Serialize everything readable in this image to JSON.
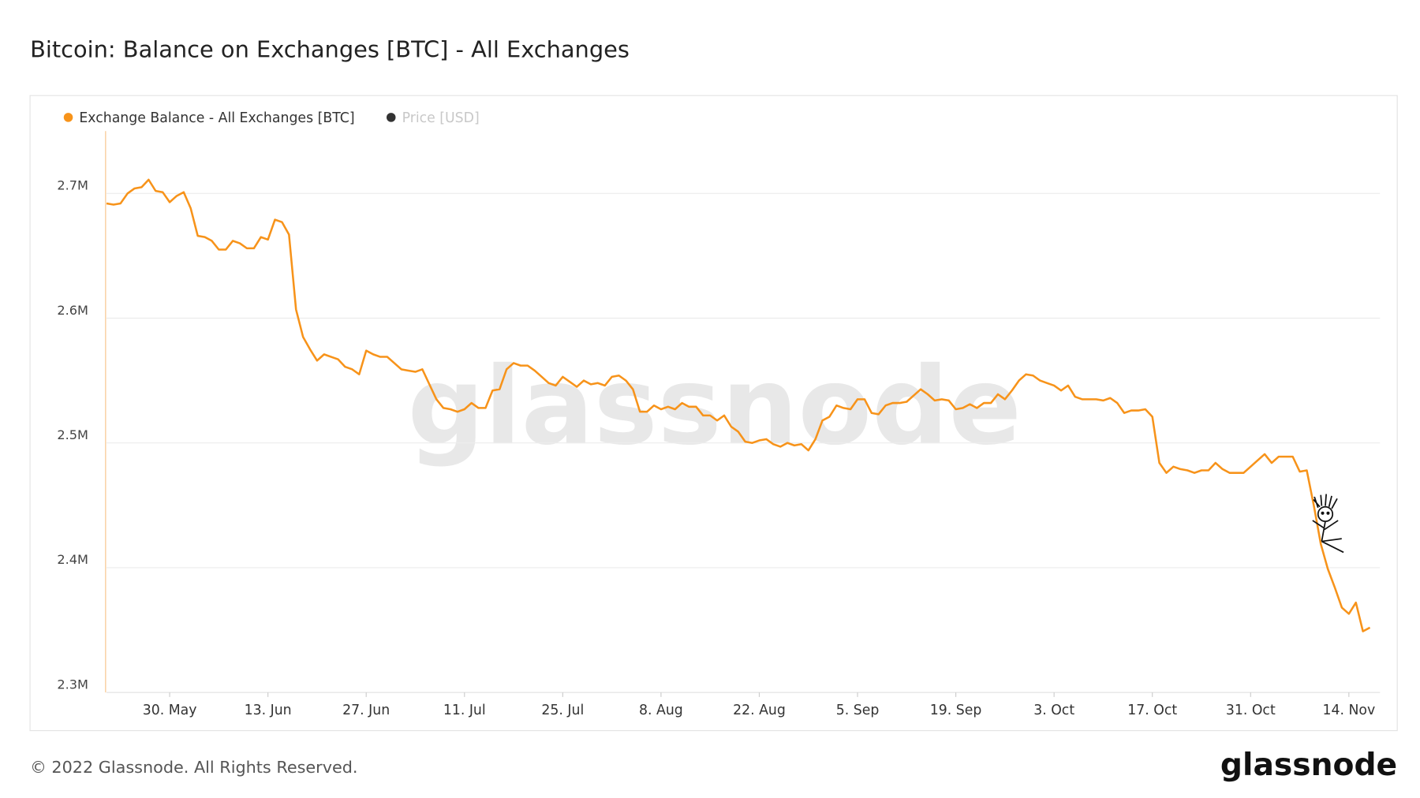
{
  "chart_data": {
    "type": "line",
    "title": "Bitcoin: Balance on Exchanges [BTC] - All Exchanges",
    "watermark": "glassnode",
    "x": [
      "21. May",
      "22. May",
      "23. May",
      "24. May",
      "25. May",
      "26. May",
      "27. May",
      "28. May",
      "29. May",
      "30. May",
      "31. May",
      "1. Jun",
      "2. Jun",
      "3. Jun",
      "4. Jun",
      "5. Jun",
      "6. Jun",
      "7. Jun",
      "8. Jun",
      "9. Jun",
      "10. Jun",
      "11. Jun",
      "12. Jun",
      "13. Jun",
      "14. Jun",
      "15. Jun",
      "16. Jun",
      "17. Jun",
      "18. Jun",
      "19. Jun",
      "20. Jun",
      "21. Jun",
      "22. Jun",
      "23. Jun",
      "24. Jun",
      "25. Jun",
      "26. Jun",
      "27. Jun",
      "28. Jun",
      "29. Jun",
      "30. Jun",
      "1. Jul",
      "2. Jul",
      "3. Jul",
      "4. Jul",
      "5. Jul",
      "6. Jul",
      "7. Jul",
      "8. Jul",
      "9. Jul",
      "10. Jul",
      "11. Jul",
      "12. Jul",
      "13. Jul",
      "14. Jul",
      "15. Jul",
      "16. Jul",
      "17. Jul",
      "18. Jul",
      "19. Jul",
      "20. Jul",
      "21. Jul",
      "22. Jul",
      "23. Jul",
      "24. Jul",
      "25. Jul",
      "26. Jul",
      "27. Jul",
      "28. Jul",
      "29. Jul",
      "30. Jul",
      "31. Jul",
      "1. Aug",
      "2. Aug",
      "3. Aug",
      "4. Aug",
      "5. Aug",
      "6. Aug",
      "7. Aug",
      "8. Aug",
      "9. Aug",
      "10. Aug",
      "11. Aug",
      "12. Aug",
      "13. Aug",
      "14. Aug",
      "15. Aug",
      "16. Aug",
      "17. Aug",
      "18. Aug",
      "19. Aug",
      "20. Aug",
      "21. Aug",
      "22. Aug",
      "23. Aug",
      "24. Aug",
      "25. Aug",
      "26. Aug",
      "27. Aug",
      "28. Aug",
      "29. Aug",
      "30. Aug",
      "31. Aug",
      "1. Sep",
      "2. Sep",
      "3. Sep",
      "4. Sep",
      "5. Sep",
      "6. Sep",
      "7. Sep",
      "8. Sep",
      "9. Sep",
      "10. Sep",
      "11. Sep",
      "12. Sep",
      "13. Sep",
      "14. Sep",
      "15. Sep",
      "16. Sep",
      "17. Sep",
      "18. Sep",
      "19. Sep",
      "20. Sep",
      "21. Sep",
      "22. Sep",
      "23. Sep",
      "24. Sep",
      "25. Sep",
      "26. Sep",
      "27. Sep",
      "28. Sep",
      "29. Sep",
      "30. Sep",
      "1. Oct",
      "2. Oct",
      "3. Oct",
      "4. Oct",
      "5. Oct",
      "6. Oct",
      "7. Oct",
      "8. Oct",
      "9. Oct",
      "10. Oct",
      "11. Oct",
      "12. Oct",
      "13. Oct",
      "14. Oct",
      "15. Oct",
      "16. Oct",
      "17. Oct",
      "18. Oct",
      "19. Oct",
      "20. Oct",
      "21. Oct",
      "22. Oct",
      "23. Oct",
      "24. Oct",
      "25. Oct",
      "26. Oct",
      "27. Oct",
      "28. Oct",
      "29. Oct",
      "30. Oct",
      "31. Oct",
      "1. Nov",
      "2. Nov",
      "3. Nov",
      "4. Nov",
      "5. Nov",
      "6. Nov",
      "7. Nov",
      "8. Nov",
      "9. Nov",
      "10. Nov",
      "11. Nov",
      "12. Nov",
      "13. Nov",
      "14. Nov",
      "15. Nov",
      "16. Nov",
      "17. Nov"
    ],
    "series": [
      {
        "name": "Exchange Balance - All Exchanges [BTC]",
        "color": "#f7931a",
        "values": [
          2692000,
          2691000,
          2692000,
          2700000,
          2704000,
          2705000,
          2711000,
          2702000,
          2701000,
          2693000,
          2698000,
          2701000,
          2688000,
          2666000,
          2665000,
          2662000,
          2655000,
          2655000,
          2662000,
          2660000,
          2656000,
          2656000,
          2665000,
          2663000,
          2679000,
          2677000,
          2667000,
          2607000,
          2585000,
          2575000,
          2566000,
          2571000,
          2569000,
          2567000,
          2561000,
          2559000,
          2555000,
          2574000,
          2571000,
          2569000,
          2569000,
          2564000,
          2559000,
          2558000,
          2557000,
          2559000,
          2547000,
          2535000,
          2528000,
          2527000,
          2525000,
          2527000,
          2532000,
          2528000,
          2528000,
          2542000,
          2543000,
          2559000,
          2564000,
          2562000,
          2562000,
          2558000,
          2553000,
          2548000,
          2546000,
          2553000,
          2549000,
          2545000,
          2550000,
          2547000,
          2548000,
          2546000,
          2553000,
          2554000,
          2550000,
          2543000,
          2525000,
          2525000,
          2530000,
          2527000,
          2529000,
          2527000,
          2532000,
          2529000,
          2529000,
          2522000,
          2522000,
          2518000,
          2522000,
          2513000,
          2509000,
          2501000,
          2500000,
          2502000,
          2503000,
          2499000,
          2497000,
          2500000,
          2498000,
          2499000,
          2494000,
          2503000,
          2518000,
          2521000,
          2530000,
          2528000,
          2527000,
          2535000,
          2535000,
          2524000,
          2523000,
          2530000,
          2532000,
          2532000,
          2533000,
          2538000,
          2543000,
          2539000,
          2534000,
          2535000,
          2534000,
          2527000,
          2528000,
          2531000,
          2528000,
          2532000,
          2532000,
          2539000,
          2535000,
          2542000,
          2550000,
          2555000,
          2554000,
          2550000,
          2548000,
          2546000,
          2542000,
          2546000,
          2537000,
          2535000,
          2535000,
          2535000,
          2534000,
          2536000,
          2532000,
          2524000,
          2526000,
          2526000,
          2527000,
          2521000,
          2484000,
          2476000,
          2481000,
          2479000,
          2478000,
          2476000,
          2478000,
          2478000,
          2484000,
          2479000,
          2476000,
          2476000,
          2476000,
          2481000,
          2486000,
          2491000,
          2484000,
          2489000,
          2489000,
          2489000,
          2477000,
          2478000,
          2450000,
          2419000,
          2399000,
          2384000,
          2368000,
          2363000,
          2372000,
          2349000,
          2352000
        ]
      },
      {
        "name": "Price [USD]",
        "color": "#333333",
        "hidden": true
      }
    ],
    "ylim": [
      2300000,
      2750000
    ],
    "yticks": [
      {
        "value": 2300000,
        "label": "2.3M"
      },
      {
        "value": 2400000,
        "label": "2.4M"
      },
      {
        "value": 2500000,
        "label": "2.5M"
      },
      {
        "value": 2600000,
        "label": "2.6M"
      },
      {
        "value": 2700000,
        "label": "2.7M"
      }
    ],
    "xticks": [
      "30. May",
      "13. Jun",
      "27. Jun",
      "11. Jul",
      "25. Jul",
      "8. Aug",
      "22. Aug",
      "5. Sep",
      "19. Sep",
      "3. Oct",
      "17. Oct",
      "31. Oct",
      "14. Nov"
    ],
    "grid": true,
    "legend": "top-left"
  },
  "footer": {
    "copyright": "© 2022 Glassnode. All Rights Reserved.",
    "logo": "glassnode"
  }
}
